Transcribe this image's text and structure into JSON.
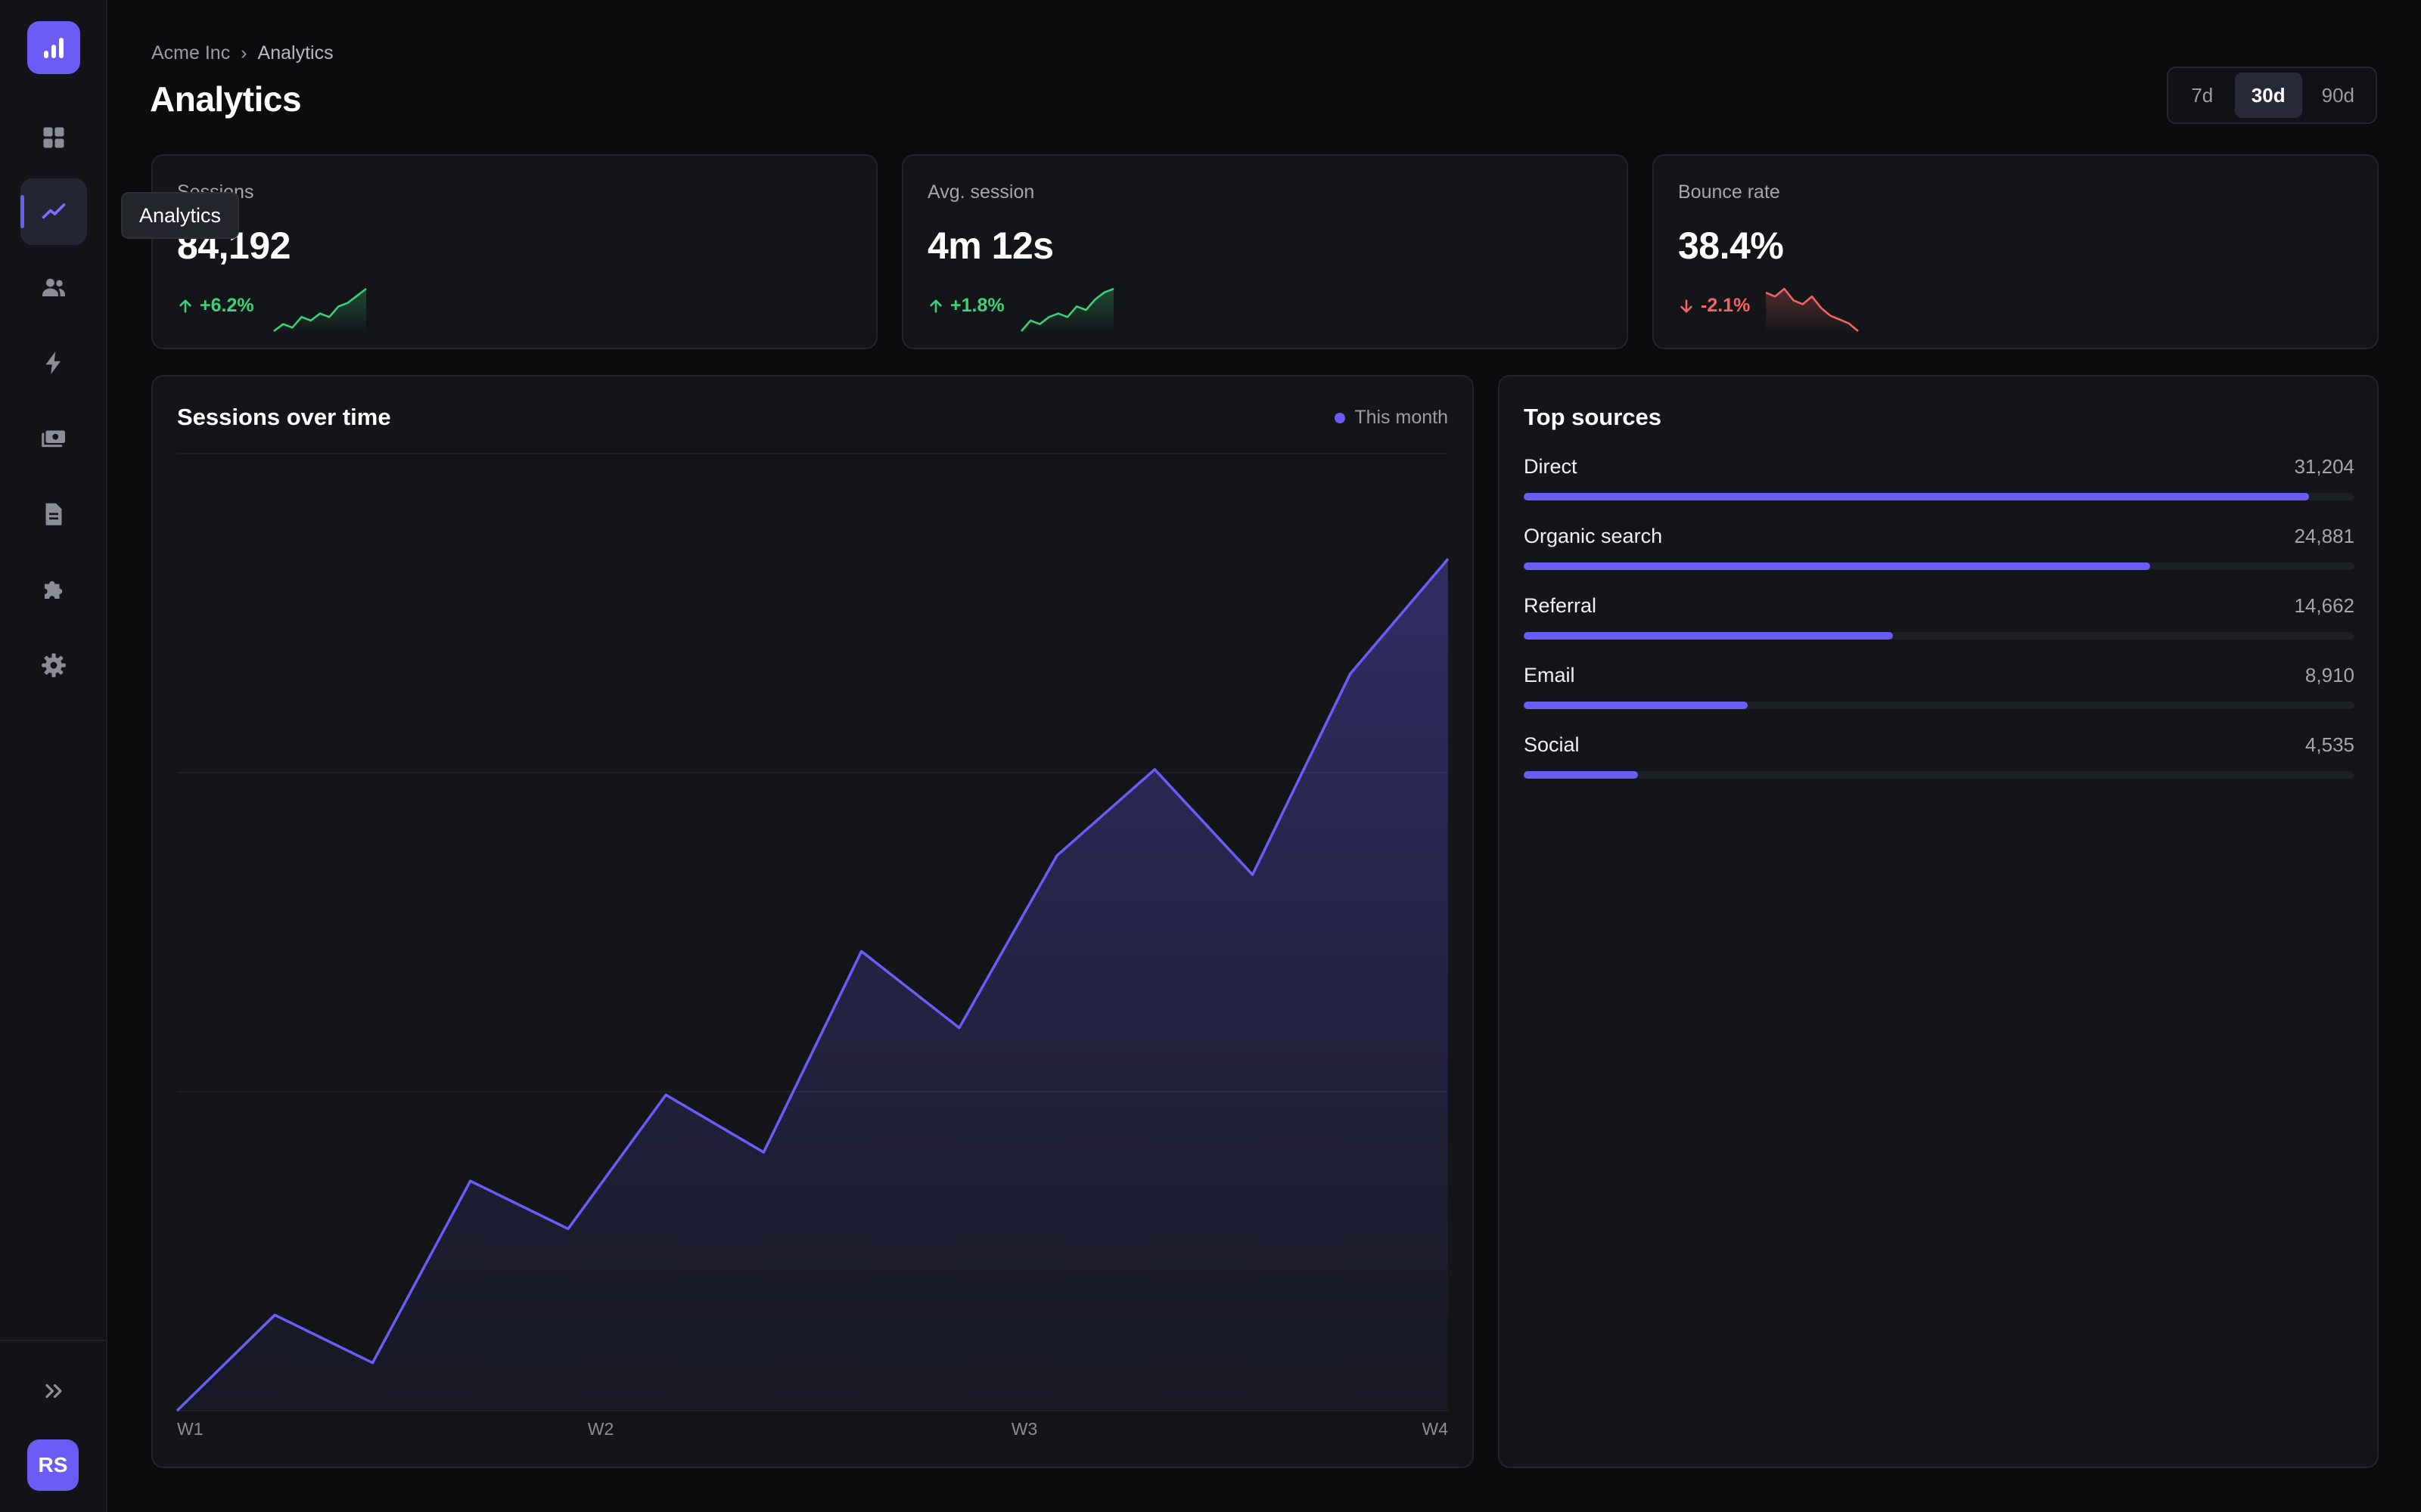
{
  "app": {
    "breadcrumb": [
      "Acme Inc",
      "›",
      "Analytics"
    ],
    "title": "Analytics",
    "tooltip": "Analytics",
    "avatar_initials": "RS"
  },
  "sidebar": {
    "items": [
      {
        "name": "dashboard",
        "icon": "grid-icon",
        "active": false
      },
      {
        "name": "analytics",
        "icon": "trend-line-icon",
        "active": true
      },
      {
        "name": "users",
        "icon": "users-icon",
        "active": false
      },
      {
        "name": "activity",
        "icon": "lightning-icon",
        "active": false
      },
      {
        "name": "billing",
        "icon": "money-icon",
        "active": false
      },
      {
        "name": "documents",
        "icon": "document-icon",
        "active": false
      },
      {
        "name": "integrations",
        "icon": "puzzle-icon",
        "active": false
      },
      {
        "name": "settings",
        "icon": "gear-icon",
        "active": false
      }
    ],
    "expand_icon": "double-chevron-right-icon"
  },
  "range": {
    "options": [
      "7d",
      "30d",
      "90d"
    ],
    "selected": "30d"
  },
  "kpis": [
    {
      "label": "Sessions",
      "value": "84,192",
      "delta": "+6.2%",
      "direction": "up",
      "color": "#3ecf7a",
      "spark": [
        2,
        4,
        3,
        6,
        5,
        7,
        6,
        9,
        10,
        12,
        14
      ]
    },
    {
      "label": "Avg. session",
      "value": "4m 12s",
      "delta": "+1.8%",
      "direction": "up",
      "color": "#3ecf7a",
      "spark": [
        2,
        5,
        4,
        6,
        7,
        6,
        9,
        8,
        11,
        13,
        14
      ]
    },
    {
      "label": "Bounce rate",
      "value": "38.4%",
      "delta": "-2.1%",
      "direction": "down",
      "color": "#f06464",
      "spark": [
        13,
        12,
        14,
        11,
        10,
        12,
        9,
        7,
        6,
        5,
        3
      ]
    }
  ],
  "chart_data": {
    "type": "area",
    "title": "Sessions over time",
    "series": [
      {
        "name": "This month",
        "color": "#6b5cf6",
        "values": [
          0,
          10,
          5,
          24,
          19,
          33,
          27,
          48,
          40,
          58,
          67,
          56,
          77,
          89
        ]
      }
    ],
    "x_tick_labels": [
      "W1",
      "W2",
      "W3",
      "W4"
    ],
    "ylim": [
      0,
      100
    ],
    "grid": true
  },
  "sources": {
    "title": "Top sources",
    "max": 33000,
    "items": [
      {
        "name": "Direct",
        "count": "31,204",
        "value": 31204
      },
      {
        "name": "Organic search",
        "count": "24,881",
        "value": 24881
      },
      {
        "name": "Referral",
        "count": "14,662",
        "value": 14662
      },
      {
        "name": "Email",
        "count": "8,910",
        "value": 8910
      },
      {
        "name": "Social",
        "count": "4,535",
        "value": 4535
      }
    ]
  },
  "colors": {
    "accent": "#6b5cf6",
    "positive": "#3ecf7a",
    "negative": "#f06464",
    "background": "#0b0c0e",
    "card": "#131519"
  }
}
